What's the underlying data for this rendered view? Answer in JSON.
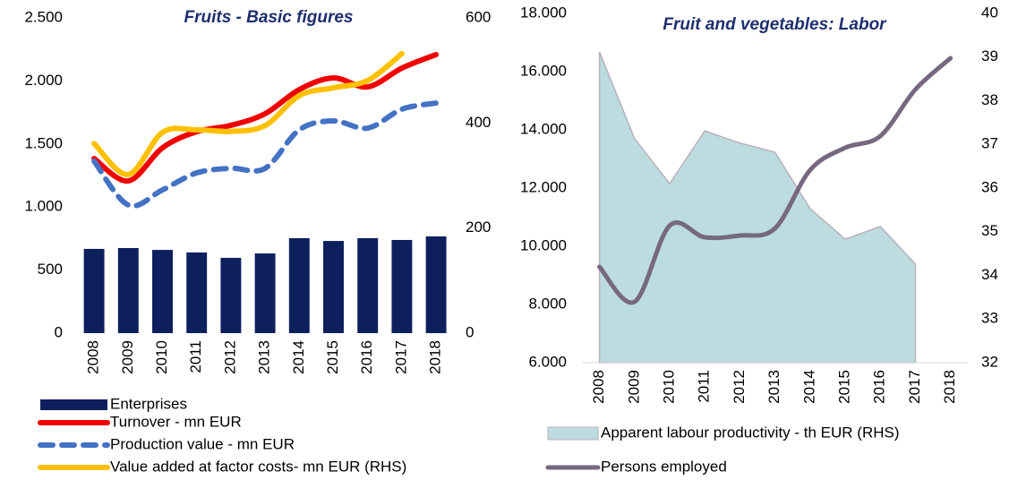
{
  "chart_data": [
    {
      "type": "combo",
      "title": "Fruits - Basic figures",
      "categories": [
        "2008",
        "2009",
        "2010",
        "2011",
        "2012",
        "2013",
        "2014",
        "2015",
        "2016",
        "2017",
        "2018"
      ],
      "ylim": [
        0,
        2500
      ],
      "yticks": [
        0,
        500,
        {
          "value": 1000,
          "label": "1.000"
        },
        {
          "value": 1500,
          "label": "1.500"
        },
        {
          "value": 2000,
          "label": "2.000"
        },
        {
          "value": 2500,
          "label": "2.500"
        }
      ],
      "y2lim": [
        0,
        600
      ],
      "y2ticks": [
        0,
        200,
        400,
        600
      ],
      "series": [
        {
          "name": "Enterprises",
          "type": "bar",
          "color": "#0d1f5c",
          "values": [
            668,
            675,
            660,
            640,
            597,
            632,
            753,
            731,
            753,
            739,
            767
          ]
        },
        {
          "name": "Turnover - mn EUR",
          "type": "line",
          "color": "#f00000",
          "values": [
            1385,
            1207,
            1470,
            1598,
            1648,
            1740,
            1932,
            2024,
            1953,
            2102,
            2209
          ]
        },
        {
          "name": "Production value - mn EUR",
          "type": "line",
          "style": "dashed",
          "color": "#4472c4",
          "values": [
            1364,
            1016,
            1136,
            1271,
            1307,
            1307,
            1612,
            1683,
            1626,
            1776,
            1825
          ]
        },
        {
          "name": "Value added at factor costs- mn EUR (RHS)",
          "type": "line",
          "axis": "y2",
          "color": "#ffc000",
          "values": [
            361,
            302,
            382,
            387,
            384,
            395,
            452,
            467,
            481,
            532,
            null
          ]
        }
      ]
    },
    {
      "type": "combo",
      "title": "Fruit and vegetables: Labor",
      "categories": [
        "2008",
        "2009",
        "2010",
        "2011",
        "2012",
        "2013",
        "2014",
        "2015",
        "2016",
        "2017",
        "2018"
      ],
      "ylim": [
        6000,
        18000
      ],
      "yticks": [
        {
          "value": 6000,
          "label": "6.000"
        },
        {
          "value": 8000,
          "label": "8.000"
        },
        {
          "value": 10000,
          "label": "10.000"
        },
        {
          "value": 12000,
          "label": "12.000"
        },
        {
          "value": 14000,
          "label": "14.000"
        },
        {
          "value": 16000,
          "label": "16.000"
        },
        {
          "value": 18000,
          "label": "18.000"
        }
      ],
      "y2lim": [
        32,
        40
      ],
      "y2ticks": [
        32,
        33,
        34,
        35,
        36,
        37,
        38,
        39,
        40
      ],
      "series": [
        {
          "name": "Apparent labour productivity - th EUR (RHS)",
          "type": "area",
          "axis": "y2",
          "color": "#bcdcdf",
          "values": [
            39.12,
            37.13,
            36.1,
            37.31,
            37.03,
            36.82,
            35.53,
            34.83,
            35.12,
            34.26,
            null
          ]
        },
        {
          "name": "Persons employed",
          "type": "line",
          "color": "#76697f",
          "values": [
            9292,
            8092,
            10708,
            10308,
            10369,
            10615,
            12615,
            13385,
            13785,
            15385,
            16462
          ]
        }
      ]
    }
  ]
}
